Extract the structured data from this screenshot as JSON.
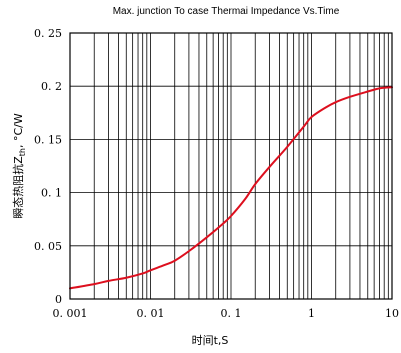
{
  "chart_data": {
    "type": "line",
    "title": "Max. junction To case Thermai Impedance Vs.Time",
    "xlabel": "时间t,S",
    "ylabel_prefix": "瞬态热阻抗Z",
    "ylabel_sub": "th",
    "ylabel_suffix": ", °C/W",
    "x_scale": "log",
    "xlim": [
      0.001,
      10
    ],
    "ylim": [
      0,
      0.25
    ],
    "x_tick_labels": [
      "0. 001",
      "0. 01",
      "0. 1",
      "1",
      "10"
    ],
    "x_tick_values": [
      0.001,
      0.01,
      0.1,
      1,
      10
    ],
    "y_tick_labels": [
      "0",
      "0. 05",
      "0. 1",
      "0. 15",
      "0. 2",
      "0. 25"
    ],
    "y_tick_values": [
      0,
      0.05,
      0.1,
      0.15,
      0.2,
      0.25
    ],
    "grid": true,
    "line_color": "#dd0f1e",
    "series": [
      {
        "x": [
          0.001,
          0.002,
          0.003,
          0.005,
          0.008,
          0.01,
          0.015,
          0.02,
          0.03,
          0.05,
          0.08,
          0.1,
          0.15,
          0.2,
          0.3,
          0.5,
          0.8,
          1,
          1.5,
          2,
          3,
          5,
          7,
          10
        ],
        "y": [
          0.01,
          0.014,
          0.017,
          0.02,
          0.024,
          0.027,
          0.032,
          0.036,
          0.045,
          0.058,
          0.071,
          0.078,
          0.094,
          0.108,
          0.124,
          0.143,
          0.162,
          0.171,
          0.18,
          0.185,
          0.19,
          0.195,
          0.198,
          0.199
        ]
      }
    ]
  }
}
